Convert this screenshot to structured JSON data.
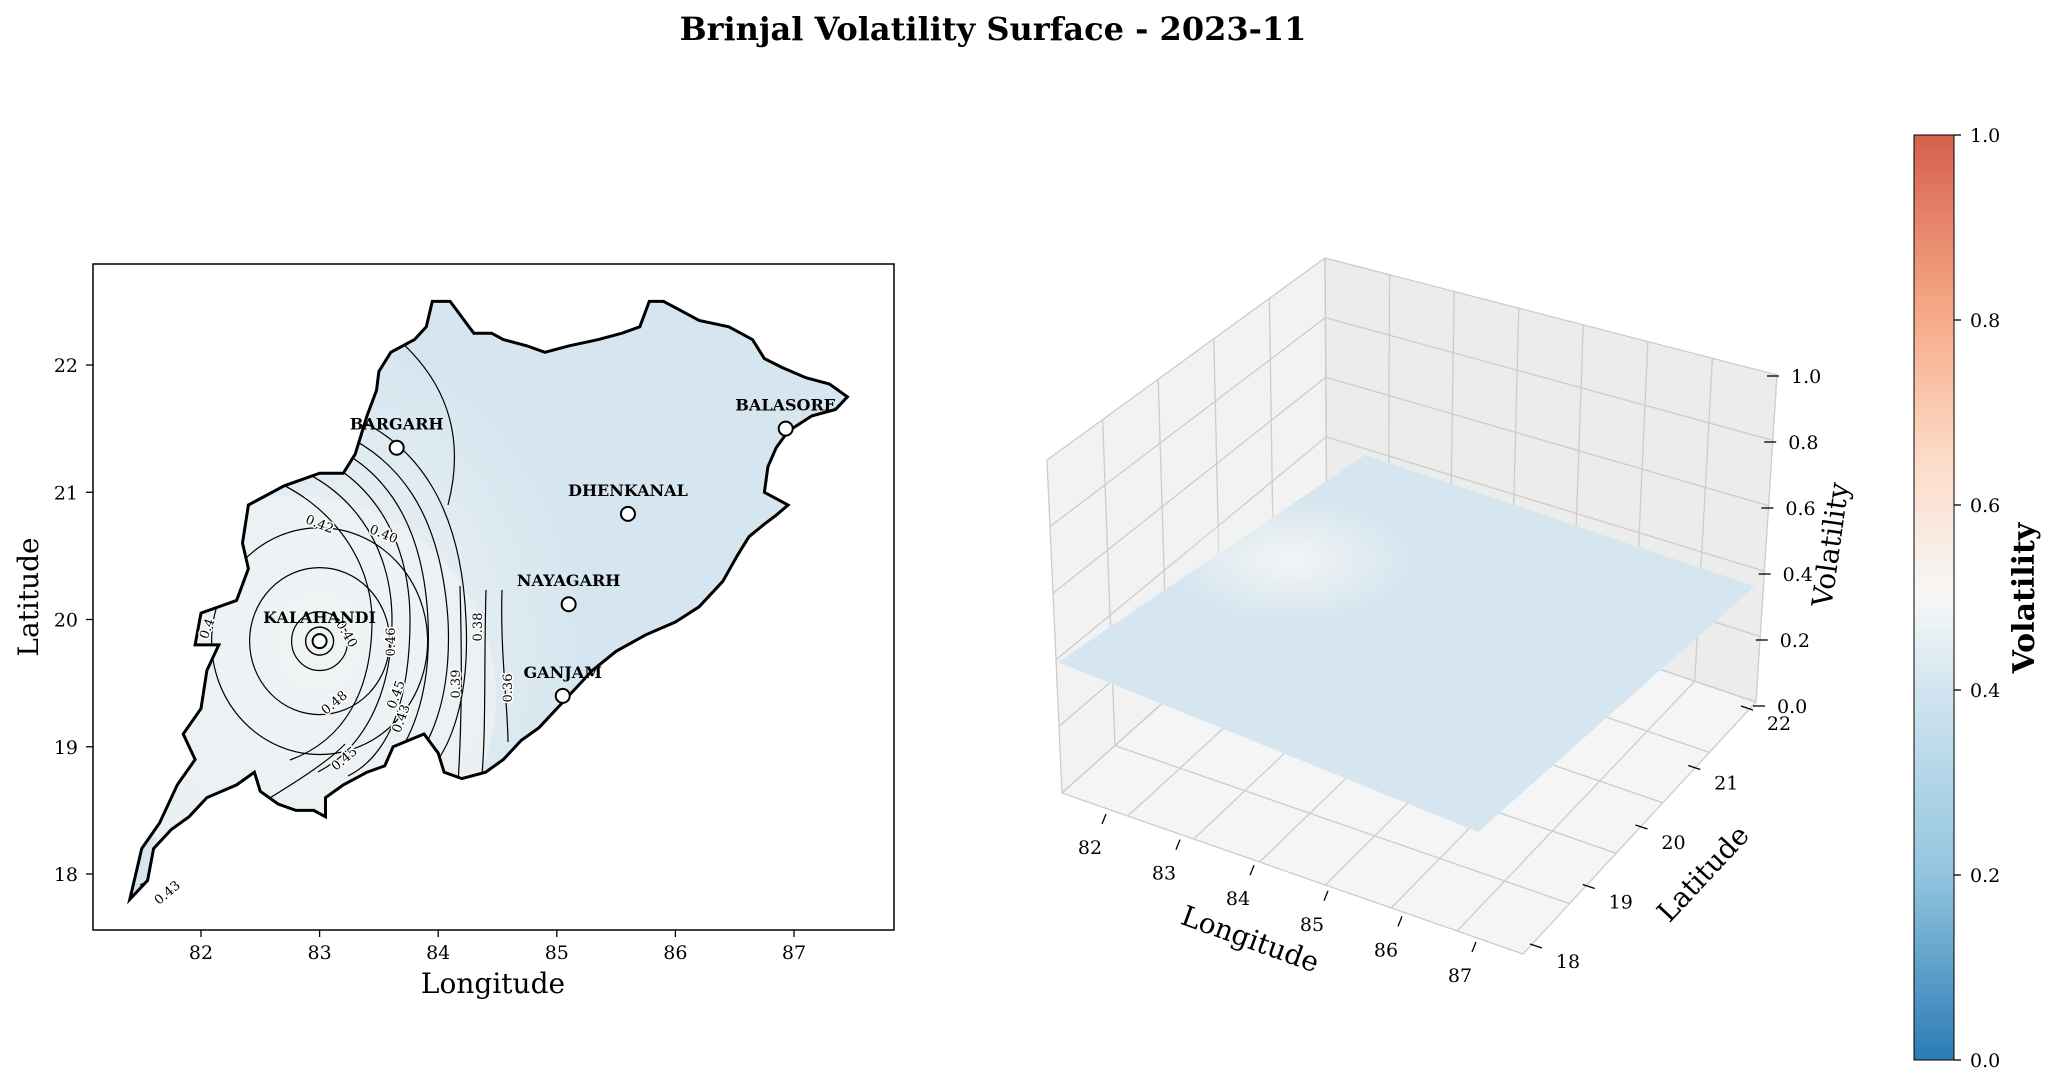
{
  "title": "Brinjal Volatility Surface - 2023-11",
  "colors": {
    "fill": "#d6e6f0",
    "fill_light": "#f2f2f2",
    "cmap_low": "#2c7bb6",
    "cmap_mid": "#f7f7f7",
    "cmap_high": "#d6604d",
    "pane_gray": "#f2f2f2",
    "grid_gray": "#cccccc"
  },
  "chart_data": [
    {
      "type": "contour",
      "xlabel": "Longitude",
      "ylabel": "Latitude",
      "xlim": [
        81.0,
        87.8
      ],
      "ylim": [
        17.55,
        22.8
      ],
      "xticks": [
        82,
        83,
        84,
        85,
        86,
        87
      ],
      "yticks": [
        18,
        19,
        20,
        21,
        22
      ],
      "districts": [
        {
          "name": "BARGARH",
          "lon": 83.65,
          "lat": 21.35
        },
        {
          "name": "BALASORE",
          "lon": 86.93,
          "lat": 21.5
        },
        {
          "name": "DHENKANAL",
          "lon": 85.6,
          "lat": 20.83
        },
        {
          "name": "NAYAGARH",
          "lon": 85.1,
          "lat": 20.12
        },
        {
          "name": "KALAHANDI",
          "lon": 83.0,
          "lat": 19.83
        },
        {
          "name": "GANJAM",
          "lon": 85.05,
          "lat": 19.4
        }
      ],
      "contour_labels": [
        "0.42",
        "0.40",
        "0.46",
        "0.40",
        "0.48",
        "0.45",
        "0.43",
        "0.39",
        "0.38",
        "0.36",
        "0.45",
        "0.43",
        "0.4"
      ]
    },
    {
      "type": "surface3d",
      "xlabel": "Longitude",
      "ylabel": "Latitude",
      "zlabel": "Volatility",
      "xticks": [
        82,
        83,
        84,
        85,
        86,
        87
      ],
      "yticks": [
        18,
        19,
        20,
        21,
        22
      ],
      "zticks": [
        "0.0",
        "0.2",
        "0.4",
        "0.6",
        "0.8",
        "1.0"
      ],
      "zlim": [
        0.0,
        1.0
      ],
      "surface_value_range": [
        0.36,
        0.48
      ]
    }
  ],
  "colorbar": {
    "label": "Volatility",
    "ticks": [
      "0.0",
      "0.2",
      "0.4",
      "0.6",
      "0.8",
      "1.0"
    ],
    "range": [
      0.0,
      1.0
    ]
  }
}
